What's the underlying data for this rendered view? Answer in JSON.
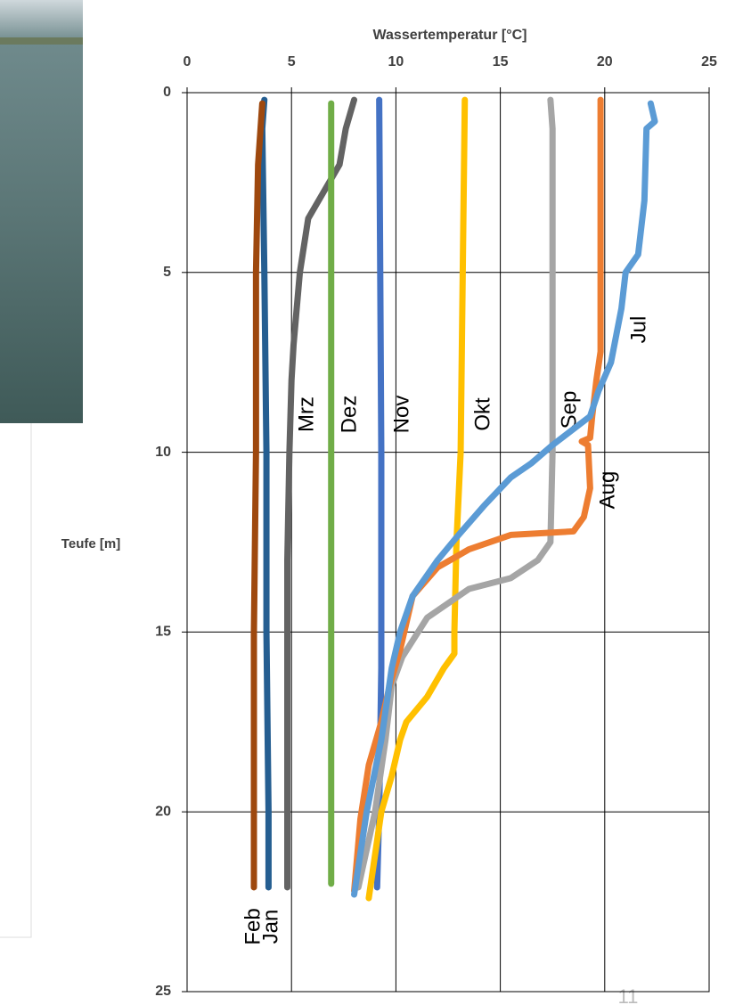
{
  "chart_data": {
    "type": "line",
    "title": "Wassertemperatur [°C]",
    "ylabel": "Teufe [m]",
    "xlim": [
      0,
      25
    ],
    "xticks": [
      0,
      5,
      10,
      15,
      20,
      25
    ],
    "ylim": [
      0,
      25
    ],
    "yticks": [
      0,
      5,
      10,
      15,
      20,
      25
    ],
    "y_inverted": true,
    "grid": true,
    "series": [
      {
        "name": "Jan",
        "color": "#255e91",
        "x": [
          3.7,
          3.6,
          3.7,
          3.8,
          3.8,
          3.9,
          3.9
        ],
        "values": [
          0.2,
          1,
          5,
          10,
          15,
          20,
          22.1
        ]
      },
      {
        "name": "Feb",
        "color": "#9e480e",
        "x": [
          3.6,
          3.4,
          3.3,
          3.3,
          3.2,
          3.2,
          3.2
        ],
        "values": [
          0.3,
          2,
          5,
          10,
          15,
          20,
          22.1
        ]
      },
      {
        "name": "Mrz",
        "color": "#636363",
        "x": [
          8.0,
          7.6,
          7.3,
          6.5,
          5.8,
          5.4,
          5.1,
          5.0,
          4.9,
          4.8,
          4.8,
          4.8
        ],
        "values": [
          0.2,
          1,
          2,
          2.8,
          3.5,
          5,
          7,
          8,
          10,
          13,
          15,
          22.1
        ]
      },
      {
        "name": "Dez",
        "color": "#70ad47",
        "x": [
          6.9,
          6.9,
          6.9
        ],
        "values": [
          0.3,
          10,
          22
        ]
      },
      {
        "name": "Nov",
        "color": "#4472c4",
        "x": [
          9.2,
          9.3,
          9.3,
          9.2,
          9.1
        ],
        "values": [
          0.2,
          10,
          16,
          20,
          22.1
        ]
      },
      {
        "name": "Okt",
        "color": "#ffc000",
        "x": [
          13.3,
          13.2,
          13.1,
          12.9,
          12.8,
          12.8,
          12.3,
          11.5,
          10.5,
          10.2,
          9.8,
          9.3,
          8.7
        ],
        "values": [
          0.2,
          5,
          10,
          12.5,
          15,
          15.6,
          16,
          16.8,
          17.5,
          18,
          19,
          20,
          22.4
        ]
      },
      {
        "name": "Sep",
        "color": "#a5a5a5",
        "x": [
          17.4,
          17.5,
          17.5,
          17.4,
          16.8,
          15.5,
          13.5,
          11.5,
          10.3,
          9.8,
          9.5,
          9.0,
          8.2
        ],
        "values": [
          0.2,
          1,
          10,
          12.5,
          13,
          13.5,
          13.8,
          14.6,
          15.7,
          16.5,
          18,
          20,
          22.1
        ]
      },
      {
        "name": "Aug",
        "color": "#ed7d31",
        "x": [
          19.8,
          19.8,
          19.6,
          19.4,
          19.3,
          18.9,
          19.2,
          19.3,
          19.0,
          18.5,
          15.5,
          13.5,
          12.0,
          10.8,
          10.2,
          9.7,
          9.3,
          8.7,
          8.3,
          8.0
        ],
        "values": [
          0.2,
          7.2,
          8,
          9,
          9.6,
          9.7,
          9.8,
          11,
          11.8,
          12.2,
          12.3,
          12.7,
          13.2,
          14,
          15.5,
          16.5,
          17.5,
          18.7,
          20.2,
          22.2
        ]
      },
      {
        "name": "Jul",
        "color": "#5b9bd5",
        "x": [
          22.2,
          22.4,
          22.0,
          21.9,
          21.6,
          21.0,
          20.8,
          20.3,
          19.7,
          19.3,
          17.5,
          16.5,
          15.5,
          14.2,
          13.0,
          12.0,
          10.8,
          10.2,
          9.8,
          9.3,
          8.6,
          8.0
        ],
        "values": [
          0.3,
          0.8,
          1,
          3,
          4.5,
          5,
          6,
          7.5,
          8.3,
          9,
          9.8,
          10.3,
          10.7,
          11.5,
          12.3,
          13,
          14,
          15,
          16,
          18,
          20,
          22.3
        ]
      }
    ]
  },
  "page_number": "11"
}
